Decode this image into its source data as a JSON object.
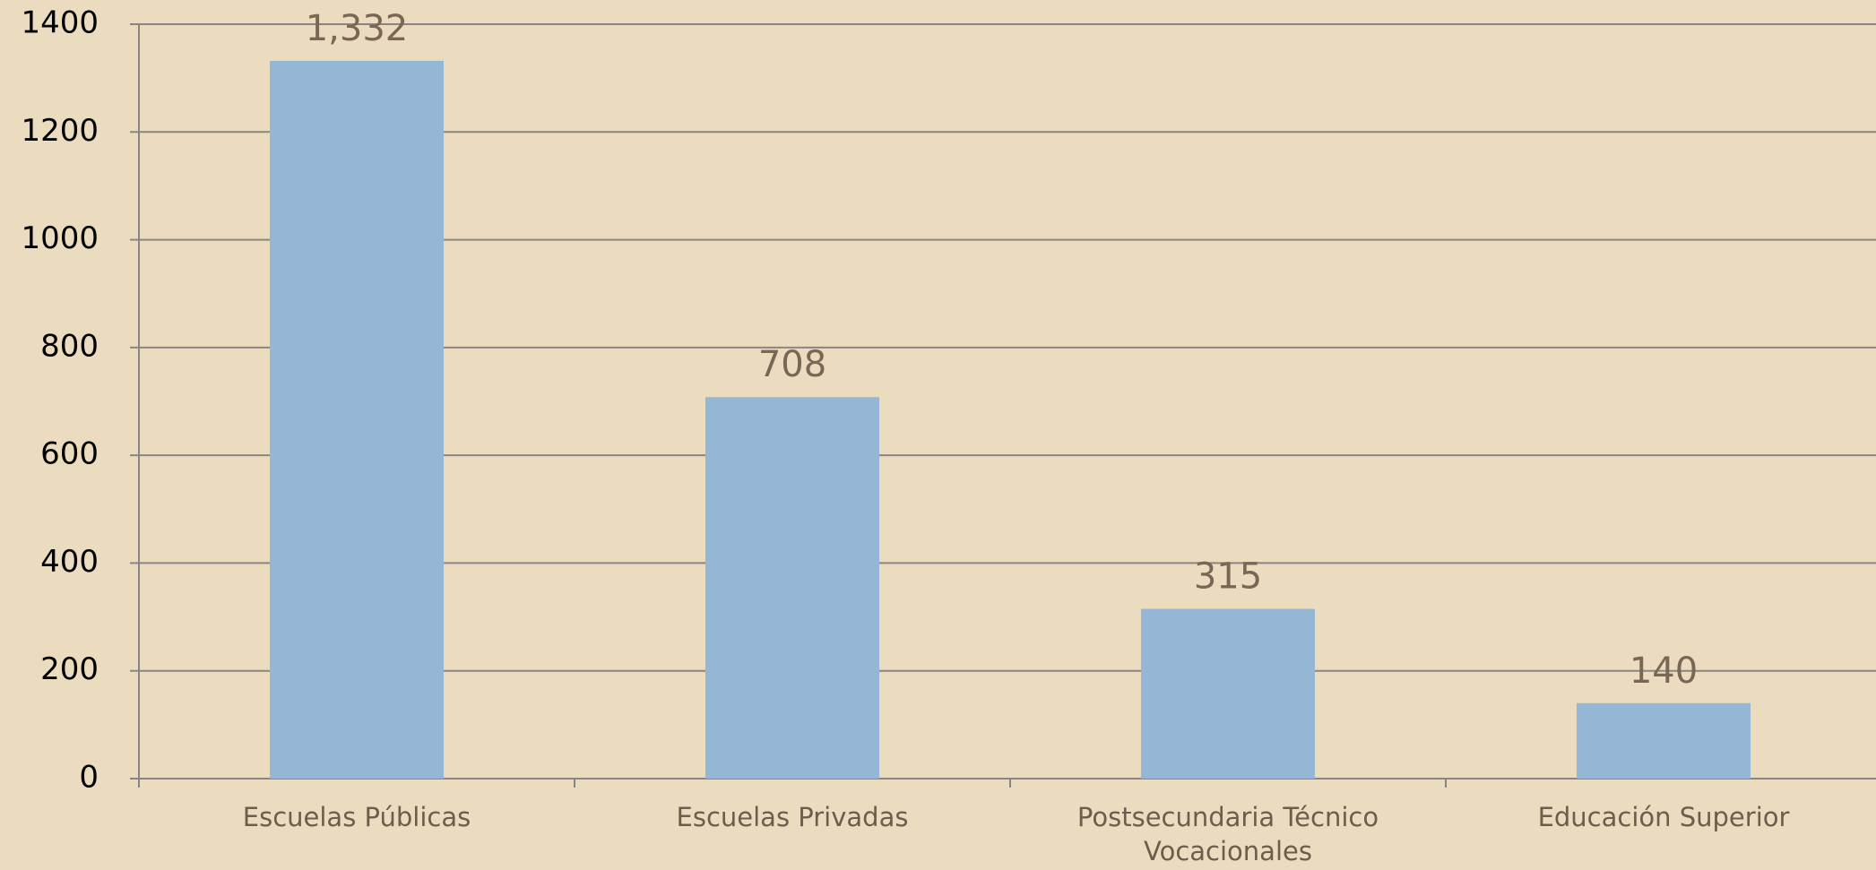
{
  "chart_data": {
    "type": "bar",
    "categories": [
      "Escuelas Públicas",
      "Escuelas Privadas",
      "Postsecundaria Técnico Vocacionales",
      "Educación Superior"
    ],
    "values": [
      1332,
      708,
      315,
      140
    ],
    "value_labels": [
      "1,332",
      "708",
      "315",
      "140"
    ],
    "color": "#95b6d5",
    "ylim": [
      0,
      1400
    ],
    "yticks": [
      0,
      200,
      400,
      600,
      800,
      1000,
      1200,
      1400
    ],
    "grid": true
  }
}
